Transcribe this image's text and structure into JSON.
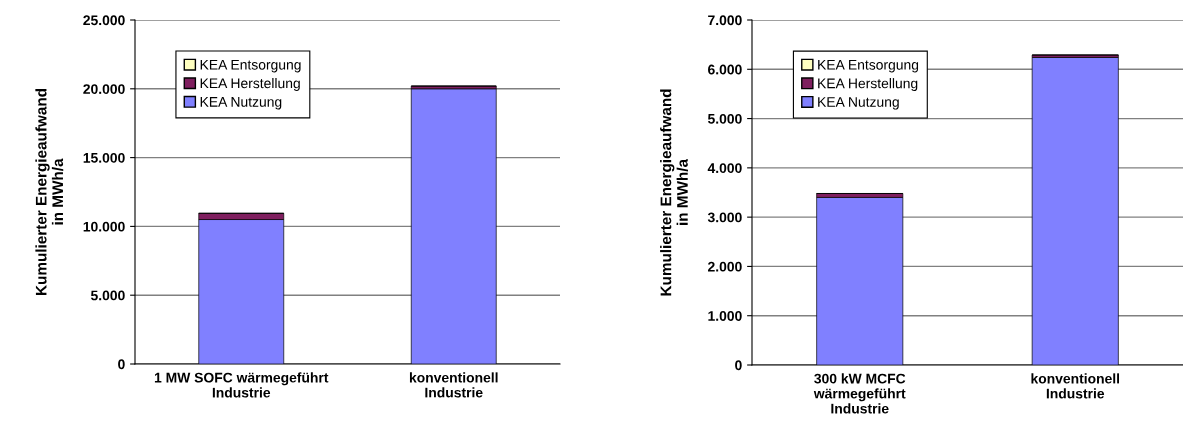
{
  "chart_data": [
    {
      "type": "bar",
      "stacked": true,
      "ylabel": "Kumulierter Energieaufwand\nin MWh/a",
      "categories": [
        "1 MW SOFC wärmegeführt\nIndustrie",
        "konventionell\nIndustrie"
      ],
      "ylim": [
        0,
        25000
      ],
      "yticks": [
        {
          "value": 0,
          "label": "0"
        },
        {
          "value": 5000,
          "label": "5.000"
        },
        {
          "value": 10000,
          "label": "10.000"
        },
        {
          "value": 15000,
          "label": "15.000"
        },
        {
          "value": 20000,
          "label": "20.000"
        },
        {
          "value": 25000,
          "label": "25.000"
        }
      ],
      "grid": "y",
      "legend": "top left",
      "series": [
        {
          "name": "KEA Nutzung",
          "color": "#8080ff",
          "values": [
            10500,
            20000
          ]
        },
        {
          "name": "KEA Herstellung",
          "color": "#7f1f5f",
          "values": [
            450,
            200
          ]
        },
        {
          "name": "KEA Entsorgung",
          "color": "#ffffc0",
          "values": [
            null,
            null
          ]
        }
      ]
    },
    {
      "type": "bar",
      "stacked": true,
      "ylabel": "Kumulierter Energieaufwand\nin MWh/a",
      "categories": [
        "300 kW MCFC\nwärmegeführt\nIndustrie",
        "konventionell\nIndustrie"
      ],
      "ylim": [
        0,
        7000
      ],
      "yticks": [
        {
          "value": 0,
          "label": "0"
        },
        {
          "value": 1000,
          "label": "1.000"
        },
        {
          "value": 2000,
          "label": "2.000"
        },
        {
          "value": 3000,
          "label": "3.000"
        },
        {
          "value": 4000,
          "label": "4.000"
        },
        {
          "value": 5000,
          "label": "5.000"
        },
        {
          "value": 6000,
          "label": "6.000"
        },
        {
          "value": 7000,
          "label": "7.000"
        }
      ],
      "grid": "y",
      "legend": "top left",
      "series": [
        {
          "name": "KEA Nutzung",
          "color": "#8080ff",
          "values": [
            3400,
            6240
          ]
        },
        {
          "name": "KEA Herstellung",
          "color": "#7f1f5f",
          "values": [
            80,
            50
          ]
        },
        {
          "name": "KEA Entsorgung",
          "color": "#ffffc0",
          "values": [
            null,
            null
          ]
        }
      ]
    }
  ]
}
